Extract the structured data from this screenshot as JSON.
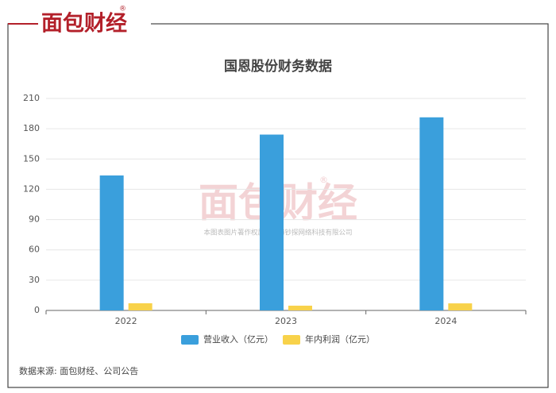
{
  "brand": "面包财经",
  "brand_mark": "®",
  "watermark": {
    "logo": "面包财经",
    "mark": "®",
    "text": "本图表图片著作权属于上海钞探网络科技有限公司"
  },
  "source": "数据来源: 面包财经、公司公告",
  "chart_data": {
    "type": "bar",
    "title": "国恩股份财务数据",
    "categories": [
      "2022",
      "2023",
      "2024"
    ],
    "series": [
      {
        "name": "营业收入（亿元）",
        "color": "#3a9fdc",
        "values": [
          133.7,
          174.2,
          191.3
        ]
      },
      {
        "name": "年内利润（亿元）",
        "color": "#f8d24a",
        "values": [
          7.1,
          4.7,
          7.0
        ]
      }
    ],
    "ylim": [
      0,
      210
    ],
    "yticks": [
      0,
      30,
      60,
      90,
      120,
      150,
      180,
      210
    ],
    "grid": true,
    "legend": "bottom"
  }
}
